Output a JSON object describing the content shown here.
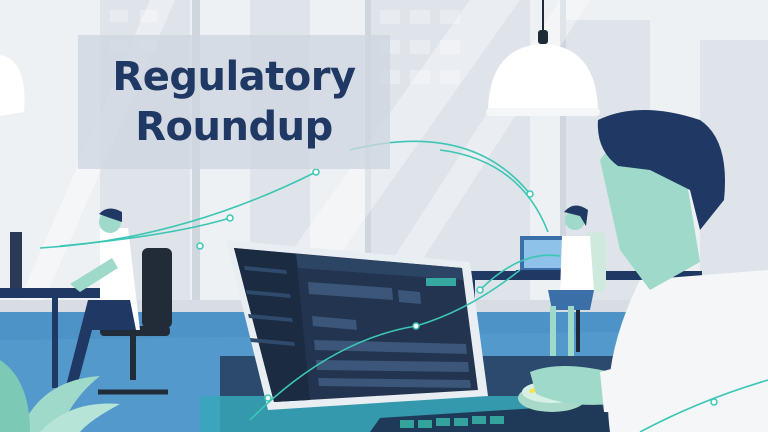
{
  "title": {
    "line1": "Regulatory",
    "line2": "Roundup"
  },
  "colors": {
    "title_text": "#1f3864",
    "accent_teal": "#3cc6b4",
    "floor_blue": "#4d93c7",
    "monitor_navy": "#22344f",
    "skin": "#9fd9c9",
    "hair": "#1f3864"
  },
  "icons": [
    "pendant-lamp-icon",
    "desk-lamp-icon",
    "computer-monitor-icon",
    "laptop-icon",
    "office-chair-icon",
    "plant-icon",
    "computer-mouse-icon"
  ]
}
